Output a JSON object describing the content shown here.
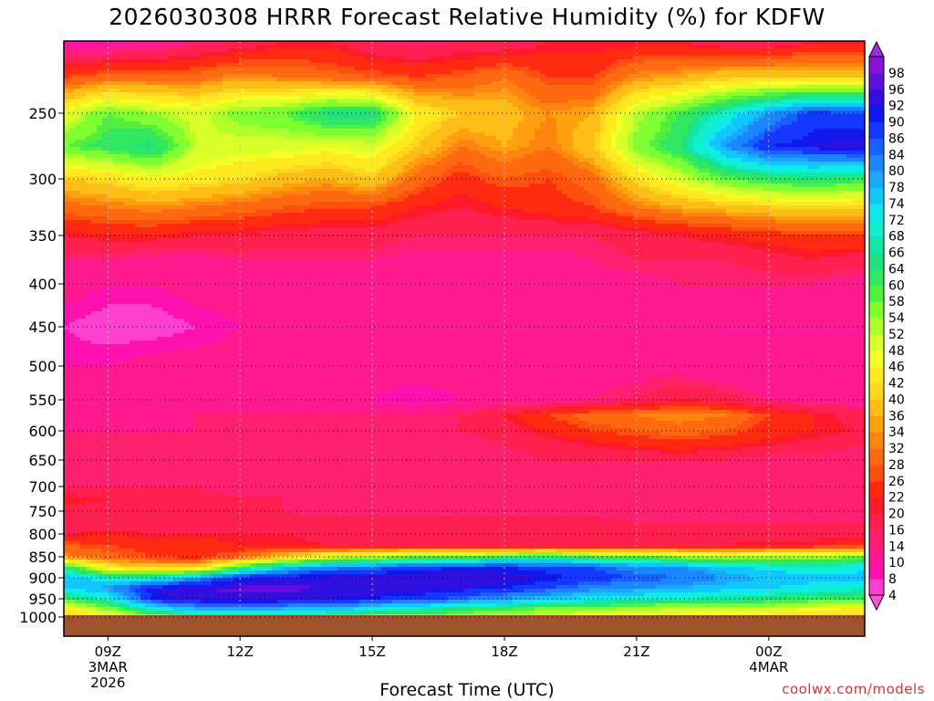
{
  "chart_data": {
    "type": "heatmap",
    "title": "2026030308 HRRR Forecast Relative Humidity (%) for KDFW",
    "xlabel": "Forecast Time (UTC)",
    "credit": "coolwx.com/models",
    "y_axis": {
      "scale": "pressure (hPa), decreasing upward",
      "ticks": [
        250,
        300,
        350,
        400,
        450,
        500,
        550,
        600,
        650,
        700,
        750,
        800,
        850,
        900,
        950,
        1000
      ],
      "range": [
        1000,
        200
      ]
    },
    "x_axis": {
      "range_hours": [
        "2026-03-03T08Z",
        "2026-03-04T03Z"
      ],
      "ticks": [
        {
          "label": "09Z",
          "sub1": "3MAR",
          "sub2": "2026",
          "hour": 1
        },
        {
          "label": "12Z",
          "sub1": "",
          "sub2": "",
          "hour": 4
        },
        {
          "label": "15Z",
          "sub1": "",
          "sub2": "",
          "hour": 7
        },
        {
          "label": "18Z",
          "sub1": "",
          "sub2": "",
          "hour": 10
        },
        {
          "label": "21Z",
          "sub1": "",
          "sub2": "",
          "hour": 13
        },
        {
          "label": "00Z",
          "sub1": "4MAR",
          "sub2": "",
          "hour": 16
        }
      ]
    },
    "grid": "dotted",
    "colorbar": {
      "levels": [
        4,
        8,
        10,
        14,
        16,
        20,
        22,
        26,
        28,
        32,
        34,
        36,
        40,
        42,
        46,
        48,
        52,
        54,
        58,
        60,
        64,
        66,
        68,
        72,
        74,
        78,
        80,
        84,
        86,
        90,
        92,
        96,
        98
      ],
      "colors": [
        "#ff3fcf",
        "#ff10b0",
        "#ff1a90",
        "#ff2070",
        "#ff2050",
        "#ff1a2a",
        "#ff2a10",
        "#ff5010",
        "#ff6a10",
        "#ff8510",
        "#ffa010",
        "#ffbe15",
        "#ffd61e",
        "#ffea20",
        "#f5ff25",
        "#d8ff28",
        "#b0ff2a",
        "#80ff30",
        "#50f040",
        "#30e860",
        "#20e080",
        "#10e8a8",
        "#10f0d0",
        "#10e8f0",
        "#10c8ff",
        "#1aa8ff",
        "#1a86ff",
        "#1a60ff",
        "#1438ff",
        "#1018ee",
        "#3010e0",
        "#6010d8",
        "#8a10d8"
      ]
    },
    "rh_field": {
      "pressure_levels": [
        200,
        225,
        250,
        275,
        300,
        325,
        350,
        375,
        400,
        450,
        500,
        550,
        575,
        600,
        625,
        650,
        700,
        725,
        750,
        775,
        800,
        825,
        850,
        875,
        900,
        925,
        950,
        975,
        1000
      ],
      "hours": [
        0,
        1,
        2,
        3,
        4,
        5,
        6,
        7,
        8,
        9,
        10,
        11,
        12,
        13,
        14,
        15,
        16,
        17,
        18,
        19
      ],
      "values": [
        [
          8,
          8,
          10,
          14,
          16,
          20,
          20,
          16,
          14,
          16,
          16,
          20,
          20,
          20,
          20,
          16,
          16,
          20,
          20,
          20
        ],
        [
          26,
          30,
          30,
          30,
          34,
          32,
          30,
          28,
          26,
          28,
          32,
          26,
          26,
          34,
          36,
          40,
          40,
          40,
          40,
          40
        ],
        [
          48,
          58,
          54,
          50,
          56,
          58,
          66,
          66,
          46,
          40,
          38,
          34,
          36,
          52,
          60,
          70,
          80,
          88,
          86,
          84
        ],
        [
          58,
          62,
          66,
          52,
          50,
          50,
          48,
          50,
          40,
          32,
          36,
          32,
          40,
          56,
          64,
          80,
          90,
          92,
          94,
          92
        ],
        [
          40,
          42,
          46,
          44,
          42,
          38,
          36,
          40,
          30,
          24,
          28,
          26,
          30,
          42,
          50,
          58,
          62,
          64,
          62,
          60
        ],
        [
          30,
          32,
          34,
          32,
          30,
          28,
          26,
          26,
          22,
          20,
          22,
          24,
          26,
          32,
          36,
          38,
          40,
          42,
          40,
          40
        ],
        [
          20,
          22,
          22,
          20,
          20,
          18,
          18,
          18,
          16,
          16,
          16,
          16,
          16,
          18,
          20,
          22,
          24,
          26,
          26,
          26
        ],
        [
          14,
          14,
          12,
          12,
          14,
          14,
          14,
          14,
          12,
          12,
          12,
          12,
          14,
          16,
          16,
          16,
          18,
          20,
          18,
          16
        ],
        [
          12,
          10,
          10,
          12,
          12,
          12,
          12,
          12,
          12,
          12,
          12,
          12,
          12,
          12,
          14,
          14,
          14,
          14,
          12,
          12
        ],
        [
          8,
          6,
          6,
          8,
          10,
          10,
          10,
          10,
          10,
          10,
          10,
          10,
          10,
          10,
          10,
          10,
          10,
          10,
          10,
          10
        ],
        [
          10,
          10,
          12,
          12,
          12,
          12,
          12,
          12,
          12,
          12,
          12,
          12,
          12,
          12,
          12,
          10,
          10,
          10,
          10,
          10
        ],
        [
          12,
          12,
          12,
          12,
          12,
          12,
          12,
          10,
          8,
          10,
          12,
          12,
          14,
          16,
          20,
          18,
          14,
          12,
          12,
          12
        ],
        [
          12,
          12,
          12,
          14,
          14,
          14,
          14,
          14,
          14,
          16,
          20,
          26,
          30,
          32,
          34,
          32,
          26,
          22,
          18,
          16
        ],
        [
          14,
          14,
          14,
          14,
          14,
          14,
          14,
          14,
          14,
          16,
          18,
          22,
          26,
          28,
          30,
          28,
          24,
          22,
          20,
          18
        ],
        [
          14,
          14,
          14,
          14,
          14,
          14,
          14,
          14,
          14,
          14,
          16,
          18,
          20,
          22,
          24,
          22,
          20,
          18,
          16,
          16
        ],
        [
          14,
          14,
          14,
          14,
          14,
          14,
          14,
          14,
          14,
          14,
          14,
          16,
          16,
          16,
          16,
          16,
          14,
          14,
          14,
          14
        ],
        [
          16,
          16,
          16,
          16,
          14,
          14,
          14,
          14,
          14,
          14,
          14,
          14,
          14,
          14,
          14,
          14,
          14,
          14,
          14,
          14
        ],
        [
          22,
          20,
          18,
          18,
          16,
          16,
          16,
          16,
          16,
          16,
          16,
          16,
          16,
          16,
          16,
          16,
          16,
          16,
          16,
          16
        ],
        [
          18,
          18,
          18,
          16,
          16,
          16,
          14,
          14,
          14,
          14,
          14,
          14,
          14,
          14,
          14,
          14,
          14,
          14,
          14,
          14
        ],
        [
          16,
          16,
          18,
          16,
          16,
          18,
          18,
          20,
          18,
          20,
          20,
          20,
          18,
          16,
          16,
          16,
          16,
          16,
          16,
          16
        ],
        [
          20,
          22,
          20,
          20,
          20,
          20,
          18,
          18,
          18,
          18,
          18,
          18,
          18,
          18,
          18,
          18,
          18,
          18,
          18,
          18
        ],
        [
          28,
          26,
          24,
          26,
          22,
          22,
          20,
          20,
          20,
          20,
          20,
          20,
          20,
          20,
          20,
          20,
          22,
          22,
          24,
          24
        ],
        [
          34,
          30,
          26,
          24,
          30,
          40,
          50,
          54,
          58,
          60,
          64,
          66,
          62,
          60,
          56,
          54,
          54,
          54,
          58,
          62
        ],
        [
          66,
          44,
          40,
          40,
          62,
          76,
          82,
          84,
          88,
          90,
          90,
          88,
          86,
          82,
          80,
          76,
          72,
          70,
          72,
          76
        ],
        [
          78,
          70,
          70,
          80,
          90,
          92,
          94,
          95,
          96,
          96,
          94,
          92,
          88,
          86,
          84,
          80,
          78,
          76,
          76,
          80
        ],
        [
          74,
          80,
          92,
          96,
          97,
          97,
          96,
          96,
          94,
          92,
          90,
          86,
          82,
          80,
          78,
          76,
          74,
          72,
          70,
          70
        ],
        [
          60,
          70,
          90,
          94,
          95,
          94,
          92,
          90,
          88,
          84,
          80,
          76,
          72,
          70,
          68,
          66,
          64,
          62,
          60,
          58
        ],
        [
          44,
          56,
          72,
          80,
          82,
          80,
          78,
          74,
          70,
          66,
          62,
          58,
          56,
          54,
          52,
          50,
          50,
          48,
          46,
          44
        ],
        [
          40,
          44,
          54,
          60,
          62,
          60,
          58,
          56,
          54,
          52,
          50,
          48,
          46,
          46,
          44,
          44,
          42,
          42,
          40,
          40
        ]
      ]
    },
    "ground_color": "#a0522d"
  }
}
